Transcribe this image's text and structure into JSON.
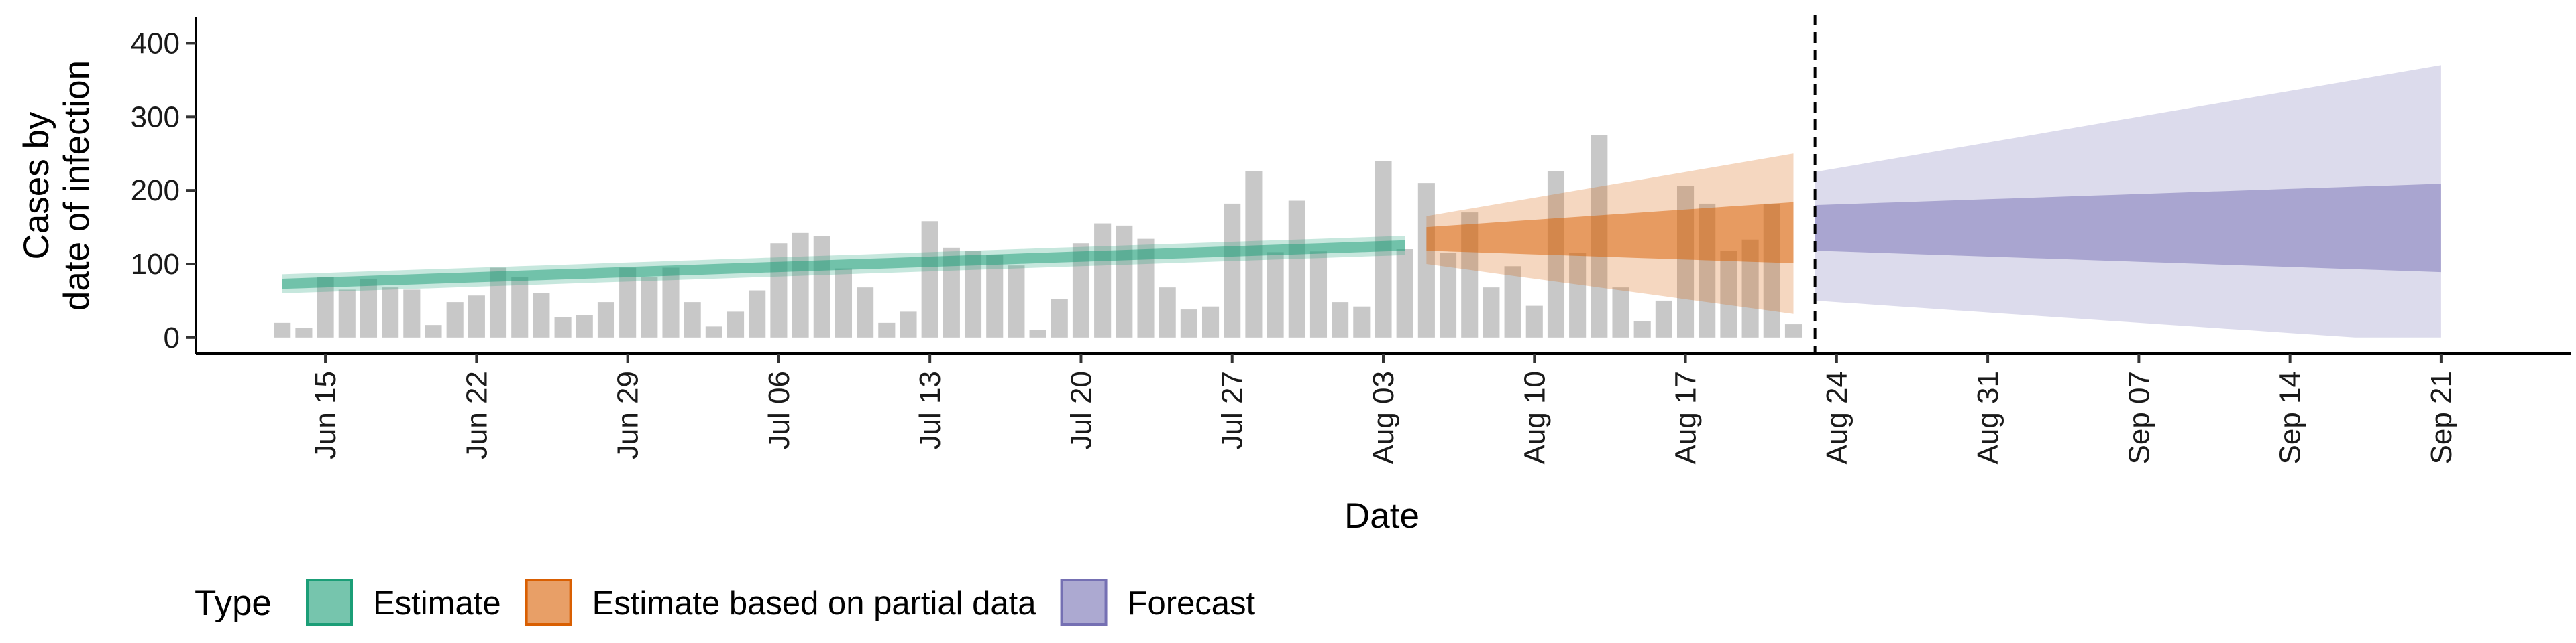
{
  "chart_data": {
    "type": "bar",
    "xlabel": "Date",
    "ylabel": [
      "Cases by",
      "date of infection"
    ],
    "ylim": [
      -22,
      435
    ],
    "yticks": [
      0,
      100,
      200,
      300,
      400
    ],
    "xlim": [
      "2021-06-09",
      "2021-09-27"
    ],
    "xticks": [
      "2021-06-15",
      "2021-06-22",
      "2021-06-29",
      "2021-07-06",
      "2021-07-13",
      "2021-07-20",
      "2021-07-27",
      "2021-08-03",
      "2021-08-10",
      "2021-08-17",
      "2021-08-24",
      "2021-08-31",
      "2021-09-07",
      "2021-09-14",
      "2021-09-21"
    ],
    "xtick_labels": [
      "Jun 15",
      "Jun 22",
      "Jun 29",
      "Jul 06",
      "Jul 13",
      "Jul 20",
      "Jul 27",
      "Aug 03",
      "Aug 10",
      "Aug 17",
      "Aug 24",
      "Aug 31",
      "Sep 07",
      "Sep 14",
      "Sep 21"
    ],
    "grid": false,
    "vline_date": "2021-08-23",
    "bars": {
      "start_date": "2021-06-13",
      "color": "#bebebe",
      "values": [
        20,
        13,
        82,
        65,
        80,
        68,
        65,
        17,
        48,
        57,
        95,
        82,
        60,
        28,
        30,
        48,
        95,
        82,
        95,
        48,
        15,
        35,
        64,
        128,
        142,
        138,
        94,
        68,
        20,
        35,
        158,
        122,
        118,
        112,
        98,
        10,
        52,
        128,
        155,
        152,
        134,
        68,
        38,
        42,
        182,
        226,
        116,
        186,
        117,
        48,
        42,
        240,
        120,
        210,
        115,
        170,
        68,
        97,
        43,
        226,
        115,
        275,
        68,
        22,
        50,
        206,
        182,
        118,
        133,
        182,
        18
      ]
    },
    "series": [
      {
        "name": "Estimate",
        "color": "#1b9e77",
        "start_date": "2021-06-13",
        "median": [
          74,
          75,
          76,
          77,
          78,
          79,
          80,
          81,
          82,
          83,
          84,
          85,
          86,
          87,
          88,
          89,
          90,
          91,
          92,
          93,
          94,
          95,
          96,
          97,
          98,
          99,
          100,
          101,
          102,
          103,
          104,
          105,
          106,
          107,
          108,
          109,
          110,
          111,
          112,
          113,
          114,
          115,
          116,
          117,
          118,
          119,
          120,
          121,
          122,
          123,
          124,
          125,
          126
        ],
        "inner_low": [
          66,
          67,
          68,
          69,
          70,
          71,
          72,
          73,
          74,
          75,
          76,
          77,
          78,
          79,
          80,
          81,
          82,
          83,
          84,
          85,
          86,
          87,
          88,
          89,
          90,
          91,
          92,
          93,
          94,
          95,
          96,
          97,
          98,
          99,
          100,
          101,
          102,
          103,
          104,
          105,
          106,
          107,
          108,
          109,
          110,
          111,
          112,
          113,
          114,
          115,
          116,
          117,
          118
        ],
        "inner_high": [
          80,
          81,
          82,
          83,
          84,
          85,
          86,
          87,
          88,
          89,
          90,
          91,
          92,
          93,
          94,
          95,
          96,
          97,
          98,
          99,
          100,
          101,
          102,
          103,
          104,
          105,
          106,
          107,
          108,
          109,
          110,
          111,
          112,
          113,
          114,
          115,
          116,
          117,
          118,
          119,
          120,
          121,
          122,
          123,
          124,
          125,
          126,
          127,
          128,
          129,
          130,
          131,
          132
        ],
        "outer_low": [
          60,
          61,
          62,
          63,
          64,
          65,
          66,
          67,
          68,
          69,
          70,
          71,
          72,
          73,
          74,
          75,
          76,
          77,
          78,
          79,
          80,
          81,
          82,
          83,
          84,
          85,
          86,
          87,
          88,
          89,
          90,
          91,
          92,
          93,
          94,
          95,
          96,
          97,
          98,
          99,
          100,
          101,
          102,
          103,
          104,
          105,
          106,
          107,
          108,
          109,
          110,
          111,
          112
        ],
        "outer_high": [
          86,
          87,
          88,
          89,
          90,
          91,
          92,
          93,
          94,
          95,
          96,
          97,
          98,
          99,
          100,
          101,
          102,
          103,
          104,
          105,
          106,
          107,
          108,
          109,
          110,
          111,
          112,
          113,
          114,
          115,
          116,
          117,
          118,
          119,
          120,
          121,
          122,
          123,
          124,
          125,
          126,
          127,
          128,
          129,
          130,
          131,
          132,
          133,
          134,
          135,
          136,
          137,
          138
        ]
      },
      {
        "name": "Estimate based on partial data",
        "color": "#d95f02",
        "start_date": "2021-08-05",
        "median": [
          132,
          133,
          134,
          135,
          136,
          137,
          138,
          139,
          140,
          141,
          142,
          143,
          144,
          145,
          146,
          147,
          148,
          149
        ],
        "inner_low": [
          118,
          117,
          116,
          115,
          114,
          113,
          112,
          111,
          110,
          109,
          108,
          107,
          106,
          105,
          104,
          103,
          102,
          101
        ],
        "inner_high": [
          150,
          152,
          154,
          156,
          158,
          160,
          162,
          164,
          166,
          168,
          170,
          172,
          174,
          176,
          178,
          180,
          182,
          184
        ],
        "outer_low": [
          100,
          96,
          92,
          88,
          84,
          80,
          76,
          72,
          68,
          64,
          60,
          56,
          52,
          48,
          44,
          40,
          36,
          32
        ],
        "outer_high": [
          165,
          170,
          175,
          180,
          185,
          190,
          195,
          200,
          205,
          210,
          215,
          220,
          225,
          230,
          235,
          240,
          245,
          250
        ]
      },
      {
        "name": "Forecast",
        "color": "#7570b3",
        "start_date": "2021-08-23",
        "median": [
          150,
          150,
          149,
          148,
          147,
          146,
          145,
          144,
          143,
          142,
          141,
          140,
          139,
          138,
          137,
          136,
          135,
          134,
          133,
          132,
          131,
          130,
          129,
          128,
          127,
          126,
          125,
          124,
          123,
          122
        ],
        "inner_low": [
          118,
          117,
          116,
          115,
          114,
          113,
          112,
          111,
          110,
          109,
          108,
          107,
          106,
          105,
          104,
          103,
          102,
          101,
          100,
          99,
          98,
          97,
          96,
          95,
          94,
          93,
          92,
          91,
          90,
          89
        ],
        "inner_high": [
          180,
          181,
          182,
          183,
          184,
          185,
          186,
          187,
          188,
          189,
          190,
          191,
          192,
          193,
          194,
          195,
          196,
          197,
          198,
          199,
          200,
          201,
          202,
          203,
          204,
          205,
          206,
          207,
          208,
          209
        ],
        "outer_low": [
          50,
          48,
          46,
          44,
          42,
          40,
          38,
          36,
          34,
          32,
          30,
          28,
          26,
          24,
          22,
          20,
          18,
          16,
          14,
          12,
          10,
          8,
          6,
          4,
          2,
          0,
          0,
          0,
          0,
          0
        ],
        "outer_high": [
          225,
          230,
          235,
          240,
          245,
          250,
          255,
          260,
          265,
          270,
          275,
          280,
          285,
          290,
          295,
          300,
          305,
          310,
          315,
          320,
          325,
          330,
          335,
          340,
          345,
          350,
          355,
          360,
          365,
          370
        ]
      }
    ]
  },
  "legend": {
    "title": "Type",
    "items": [
      "Estimate",
      "Estimate based on partial data",
      "Forecast"
    ]
  }
}
